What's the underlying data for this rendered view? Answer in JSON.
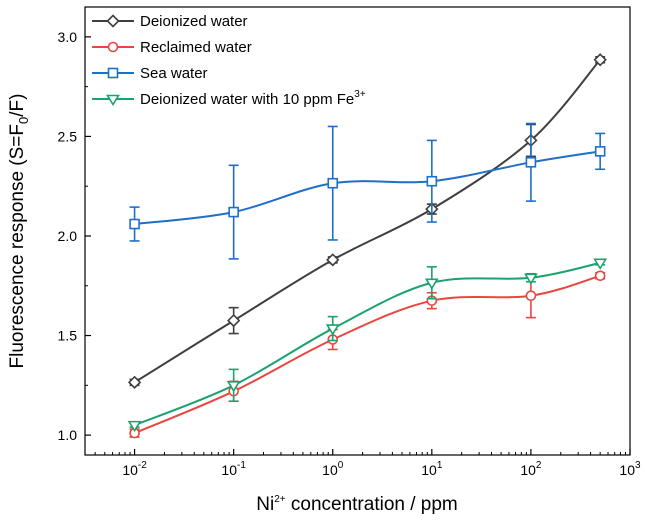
{
  "chart_data": {
    "type": "line",
    "xlabel": {
      "base": "Ni",
      "sup": "2+",
      "rest": " concentration / ppm"
    },
    "ylabel": {
      "pre": "Fluorescence response (S=F",
      "sub": "0",
      "post": "/F)"
    },
    "x_scale": "log",
    "xlim": [
      0.00316,
      1000
    ],
    "ylim": [
      0.9,
      3.15
    ],
    "x_ticks": [
      {
        "value": 0.01,
        "base": "10",
        "exp": "-2"
      },
      {
        "value": 0.1,
        "base": "10",
        "exp": "-1"
      },
      {
        "value": 1,
        "base": "10",
        "exp": "0"
      },
      {
        "value": 10,
        "base": "10",
        "exp": "1"
      },
      {
        "value": 100,
        "base": "10",
        "exp": "2"
      },
      {
        "value": 1000,
        "base": "10",
        "exp": "3"
      }
    ],
    "y_ticks": [
      {
        "value": 1.0,
        "label": "1.0"
      },
      {
        "value": 1.5,
        "label": "1.5"
      },
      {
        "value": 2.0,
        "label": "2.0"
      },
      {
        "value": 2.5,
        "label": "2.5"
      },
      {
        "value": 3.0,
        "label": "3.0"
      }
    ],
    "x": [
      0.01,
      0.1,
      1,
      10,
      100,
      500
    ],
    "series": [
      {
        "name": "Deionized water",
        "color": "#3f3f3f",
        "marker": "diamond",
        "values": [
          1.265,
          1.575,
          1.88,
          2.135,
          2.48,
          2.885
        ],
        "errors": [
          0.015,
          0.065,
          0.015,
          0.025,
          0.08,
          0.015
        ]
      },
      {
        "name": "Reclaimed water",
        "color": "#e8473f",
        "marker": "circle",
        "values": [
          1.01,
          1.22,
          1.48,
          1.675,
          1.7,
          1.8
        ],
        "errors": [
          0.02,
          0.05,
          0.05,
          0.04,
          0.11,
          0.015
        ]
      },
      {
        "name": "Sea water",
        "color": "#1f6fc9",
        "marker": "square",
        "values": [
          2.06,
          2.12,
          2.265,
          2.275,
          2.37,
          2.425
        ],
        "errors": [
          0.085,
          0.235,
          0.285,
          0.205,
          0.195,
          0.09
        ]
      },
      {
        "name": "Deionized water with 10 ppm Fe",
        "name_sup": "3+",
        "color": "#1aa36f",
        "marker": "triangle-down",
        "values": [
          1.05,
          1.25,
          1.535,
          1.765,
          1.79,
          1.865
        ],
        "errors": [
          0.01,
          0.08,
          0.06,
          0.08,
          0.02,
          0.01
        ]
      }
    ],
    "legend_position": "top-left, inside plot",
    "grid": false
  }
}
